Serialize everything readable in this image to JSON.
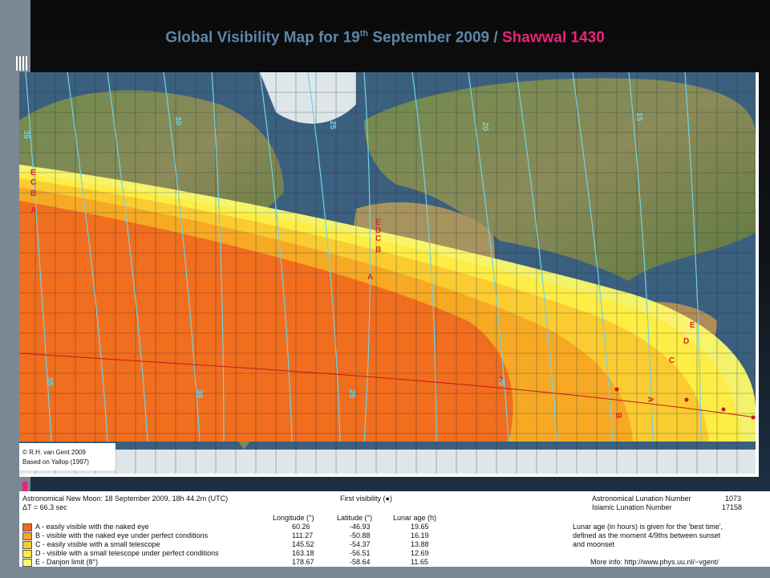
{
  "title": {
    "prefix": "Global Visibility Map for 19",
    "superscript": "th",
    "middle": " September 2009 / ",
    "highlight": "Shawwal 1430"
  },
  "colors": {
    "accent_pink": "#e8247a",
    "title_blue": "#5d86a8",
    "zone_A": "#f06a1f",
    "zone_B": "#f7a624",
    "zone_C": "#fbc931",
    "zone_D": "#fdec42",
    "zone_E": "#fdfa6a",
    "meridian_lines": "#6fd3e6"
  },
  "map": {
    "credit": [
      "© R.H. van Gent 2009",
      "Based on Yallop (1997)"
    ],
    "meridian_labels_top": [
      "35",
      "30",
      "25",
      "20",
      "15"
    ],
    "meridian_labels_bottom": [
      "35",
      "30",
      "25",
      "20"
    ],
    "zone_letters_west": [
      "E",
      "C",
      "B",
      "A"
    ],
    "zone_letters_africa": [
      "E",
      "D",
      "C",
      "B",
      "A"
    ],
    "zone_letters_east": [
      "E",
      "D",
      "C"
    ],
    "curve_letters": [
      "B",
      "A"
    ]
  },
  "legend": {
    "new_moon": "Astronomical New Moon: 18 September 2009, 18h 44.2m (UTC)",
    "delta_t": "ΔT = 66.3 sec",
    "first_visibility": "First visibility (●)",
    "columns": [
      "Longitude (°)",
      "Latitude (°)",
      "Lunar age (h)"
    ],
    "rows": [
      {
        "label": "A - easily visible with the naked eye",
        "longitude": "60.26",
        "latitude": "-46.93",
        "age": "19.65"
      },
      {
        "label": "B - visible with the naked eye under perfect conditions",
        "longitude": "111.27",
        "latitude": "-50.88",
        "age": "16.19"
      },
      {
        "label": "C - easily visible with a small telescope",
        "longitude": "145.52",
        "latitude": "-54.37",
        "age": "13.88"
      },
      {
        "label": "D - visible with a small telescope under perfect conditions",
        "longitude": "163.18",
        "latitude": "-56.51",
        "age": "12.69"
      },
      {
        "label": "E - Danjon limit (8°)",
        "longitude": "178.67",
        "latitude": "-58.64",
        "age": "11.65"
      }
    ],
    "lunation_label": "Astronomical Lunation Number",
    "lunation_value": "1073",
    "islamic_label": "Islamic Lunation Number",
    "islamic_value": "17158",
    "age_note": [
      "Lunar age (in hours) is given for the 'best time',",
      "defined as the moment 4/9ths between sunset",
      "and moonset"
    ],
    "more_info": "More info: http://www.phys.uu.nl/~vgent/"
  }
}
